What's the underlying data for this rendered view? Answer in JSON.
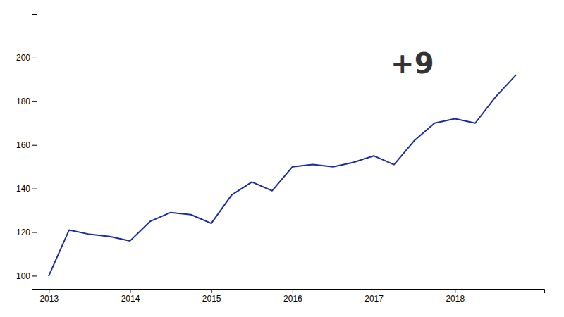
{
  "chart_data": {
    "type": "line",
    "x": [
      2013.0,
      2013.25,
      2013.5,
      2013.75,
      2014.0,
      2014.25,
      2014.5,
      2014.75,
      2015.0,
      2015.25,
      2015.5,
      2015.75,
      2016.0,
      2016.25,
      2016.5,
      2016.75,
      2017.0,
      2017.25,
      2017.5,
      2017.75,
      2018.0,
      2018.25,
      2018.5,
      2018.75
    ],
    "values": [
      100,
      121,
      119,
      118,
      116,
      125,
      129,
      128,
      124,
      137,
      143,
      139,
      150,
      151,
      150,
      152,
      155,
      151,
      162,
      170,
      172,
      170,
      182,
      192
    ],
    "color": "#1e2d9c",
    "xlim": [
      2012.85,
      2019.1
    ],
    "ylim": [
      94,
      220
    ],
    "xticks": [
      2013,
      2014,
      2015,
      2016,
      2017,
      2018
    ],
    "yticks": [
      100,
      120,
      140,
      160,
      180,
      200
    ],
    "grid": false,
    "annotations": [
      "+9"
    ]
  }
}
